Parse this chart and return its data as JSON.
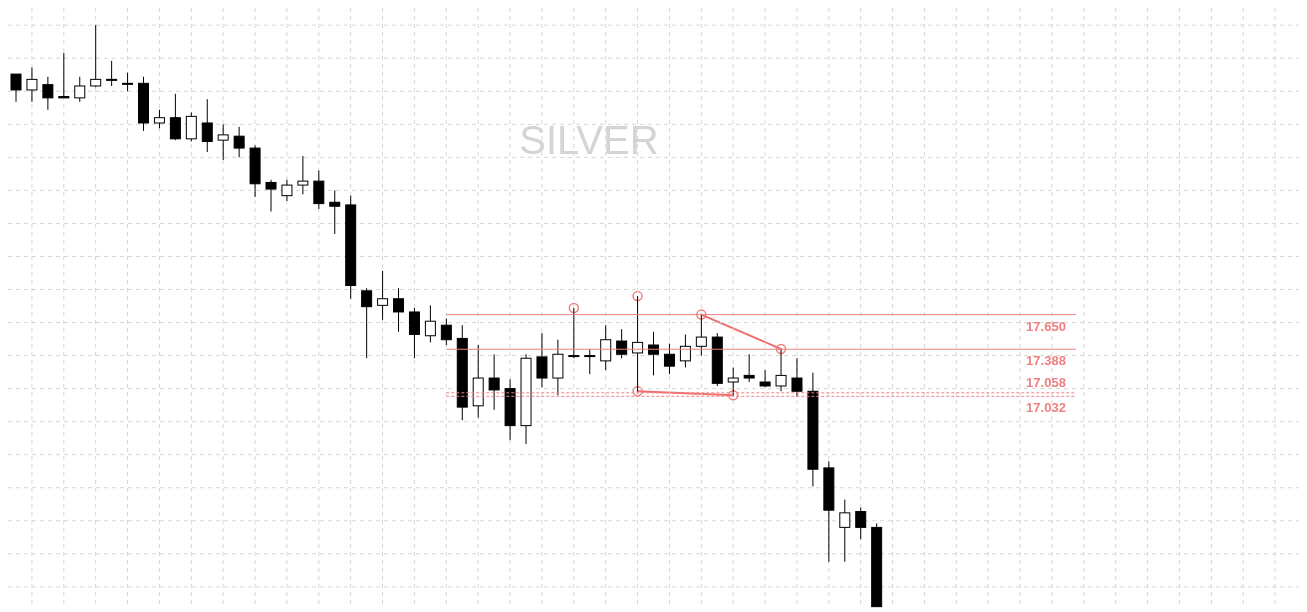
{
  "chart_data": {
    "type": "candlestick",
    "title": "SILVER",
    "tick_labels": false,
    "grid": true,
    "categories": [
      null,
      null,
      null,
      null,
      null,
      null,
      null,
      null,
      null,
      null,
      null,
      null,
      null,
      null,
      null,
      null,
      null,
      null,
      null,
      null,
      null,
      null,
      null,
      null,
      null,
      null,
      null,
      null,
      null,
      null,
      null,
      null,
      null,
      null,
      null,
      null,
      null,
      null,
      null,
      null,
      null,
      null,
      null,
      null,
      null,
      null,
      null,
      null,
      null,
      null,
      null,
      null,
      null,
      null,
      null
    ],
    "ylim": [
      15.43,
      19.97
    ],
    "yticks": [
      {
        "value": 15.59,
        "label": null
      },
      {
        "value": 15.84,
        "label": null
      },
      {
        "value": 16.09,
        "label": null
      },
      {
        "value": 16.34,
        "label": null
      },
      {
        "value": 16.59,
        "label": null
      },
      {
        "value": 16.84,
        "label": null
      },
      {
        "value": 17.09,
        "label": null
      },
      {
        "value": 17.34,
        "label": null
      },
      {
        "value": 17.59,
        "label": null
      },
      {
        "value": 17.84,
        "label": null
      },
      {
        "value": 18.09,
        "label": null
      },
      {
        "value": 18.34,
        "label": null
      },
      {
        "value": 18.59,
        "label": null
      },
      {
        "value": 18.84,
        "label": null
      },
      {
        "value": 19.09,
        "label": null
      },
      {
        "value": 19.34,
        "label": null
      },
      {
        "value": 19.59,
        "label": null
      },
      {
        "value": 19.84,
        "label": null
      }
    ],
    "ohlc": [
      [
        19.47,
        19.47,
        19.26,
        19.35
      ],
      [
        19.35,
        19.52,
        19.26,
        19.43
      ],
      [
        19.39,
        19.45,
        19.2,
        19.29
      ],
      [
        19.3,
        19.63,
        19.29,
        19.29
      ],
      [
        19.29,
        19.45,
        19.26,
        19.38
      ],
      [
        19.38,
        19.84,
        19.37,
        19.43
      ],
      [
        19.43,
        19.57,
        19.38,
        19.43
      ],
      [
        19.4,
        19.48,
        19.34,
        19.4
      ],
      [
        19.4,
        19.45,
        19.04,
        19.1
      ],
      [
        19.1,
        19.2,
        19.06,
        19.14
      ],
      [
        19.14,
        19.32,
        18.97,
        18.98
      ],
      [
        18.98,
        19.18,
        18.96,
        19.15
      ],
      [
        19.1,
        19.28,
        18.88,
        18.96
      ],
      [
        18.97,
        19.09,
        18.82,
        19.01
      ],
      [
        19.0,
        19.07,
        18.84,
        18.91
      ],
      [
        18.91,
        18.93,
        18.54,
        18.64
      ],
      [
        18.65,
        18.67,
        18.43,
        18.6
      ],
      [
        18.55,
        18.67,
        18.51,
        18.63
      ],
      [
        18.63,
        18.85,
        18.56,
        18.66
      ],
      [
        18.66,
        18.74,
        18.45,
        18.49
      ],
      [
        18.5,
        18.59,
        18.26,
        18.47
      ],
      [
        18.48,
        18.55,
        17.77,
        17.87
      ],
      [
        17.83,
        17.85,
        17.32,
        17.71
      ],
      [
        17.72,
        17.98,
        17.61,
        17.77
      ],
      [
        17.77,
        17.85,
        17.52,
        17.67
      ],
      [
        17.67,
        17.7,
        17.32,
        17.5
      ],
      [
        17.49,
        17.72,
        17.44,
        17.6
      ],
      [
        17.57,
        17.62,
        17.42,
        17.46
      ],
      [
        17.47,
        17.57,
        16.85,
        16.95
      ],
      [
        16.96,
        17.42,
        16.87,
        17.17
      ],
      [
        17.17,
        17.35,
        16.93,
        17.08
      ],
      [
        17.09,
        17.16,
        16.7,
        16.81
      ],
      [
        16.81,
        17.35,
        16.67,
        17.32
      ],
      [
        17.33,
        17.51,
        17.1,
        17.17
      ],
      [
        17.17,
        17.46,
        17.04,
        17.35
      ],
      [
        17.34,
        17.7,
        17.32,
        17.34
      ],
      [
        17.34,
        17.39,
        17.2,
        17.34
      ],
      [
        17.3,
        17.57,
        17.23,
        17.46
      ],
      [
        17.45,
        17.54,
        17.32,
        17.35
      ],
      [
        17.36,
        17.79,
        17.07,
        17.44
      ],
      [
        17.42,
        17.52,
        17.19,
        17.35
      ],
      [
        17.35,
        17.43,
        17.2,
        17.26
      ],
      [
        17.3,
        17.5,
        17.25,
        17.41
      ],
      [
        17.41,
        17.65,
        17.34,
        17.48
      ],
      [
        17.48,
        17.51,
        17.11,
        17.13
      ],
      [
        17.14,
        17.25,
        17.04,
        17.17
      ],
      [
        17.19,
        17.35,
        17.14,
        17.17
      ],
      [
        17.14,
        17.23,
        17.1,
        17.11
      ],
      [
        17.11,
        17.39,
        17.07,
        17.19
      ],
      [
        17.17,
        17.32,
        17.03,
        17.07
      ],
      [
        17.07,
        17.21,
        16.35,
        16.48
      ],
      [
        16.49,
        16.54,
        15.78,
        16.17
      ],
      [
        16.04,
        16.25,
        15.78,
        16.15
      ],
      [
        16.16,
        16.19,
        15.95,
        16.04
      ],
      [
        16.04,
        16.07,
        15.44,
        15.44
      ]
    ],
    "ref_lines": [
      {
        "axis": "y",
        "value": 17.65,
        "label": "17.650",
        "color": "#f08080",
        "line_style": "solid"
      },
      {
        "axis": "y",
        "value": 17.388,
        "label": "17.388",
        "color": "#f08080",
        "line_style": "solid"
      },
      {
        "axis": "y",
        "value": 17.058,
        "label": "17.058",
        "color": "#f08080",
        "line_style": "dashed"
      },
      {
        "axis": "y",
        "value": 17.032,
        "label": "17.032",
        "color": "#f08080",
        "line_style": "dashed"
      }
    ]
  }
}
